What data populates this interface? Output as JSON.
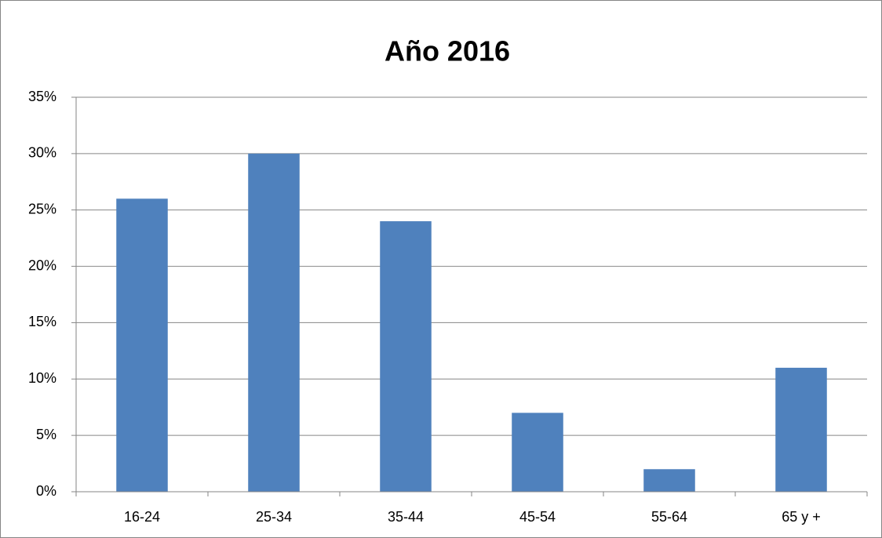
{
  "chart_data": {
    "type": "bar",
    "title": "Año 2016",
    "categories": [
      "16-24",
      "25-34",
      "35-44",
      "45-54",
      "55-64",
      "65 y +"
    ],
    "values": [
      26,
      30,
      24,
      7,
      2,
      11
    ],
    "color": "#4f81bd",
    "ylim": [
      0,
      35
    ],
    "yticks": [
      {
        "value": 0,
        "label": "0%"
      },
      {
        "value": 5,
        "label": "5%"
      },
      {
        "value": 10,
        "label": "10%"
      },
      {
        "value": 15,
        "label": "15%"
      },
      {
        "value": 20,
        "label": "20%"
      },
      {
        "value": 25,
        "label": "25%"
      },
      {
        "value": 30,
        "label": "30%"
      },
      {
        "value": 35,
        "label": "35%"
      }
    ],
    "grid": true
  }
}
